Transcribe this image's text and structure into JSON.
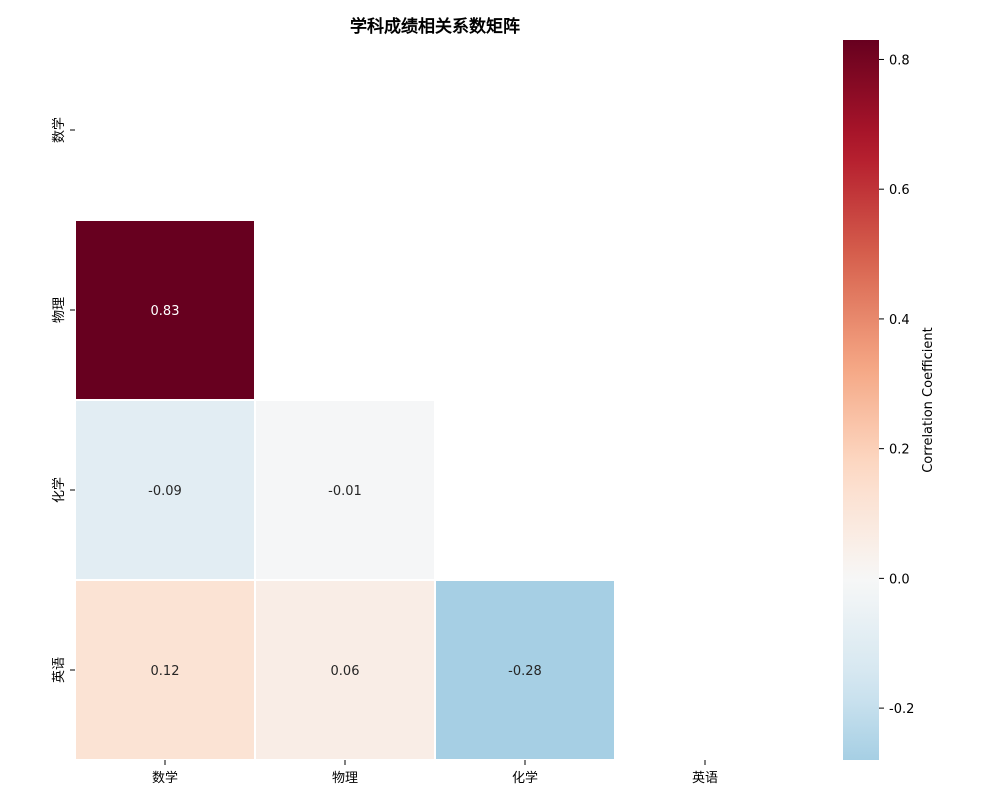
{
  "chart_data": {
    "type": "heatmap",
    "title": "学科成绩相关系数矩阵",
    "x_categories": [
      "数学",
      "物理",
      "化学",
      "英语"
    ],
    "y_categories": [
      "数学",
      "物理",
      "化学",
      "英语"
    ],
    "cells": [
      {
        "row": 1,
        "col": 0,
        "value": 0.83,
        "label": "0.83"
      },
      {
        "row": 2,
        "col": 0,
        "value": -0.09,
        "label": "-0.09"
      },
      {
        "row": 2,
        "col": 1,
        "value": -0.01,
        "label": "-0.01"
      },
      {
        "row": 3,
        "col": 0,
        "value": 0.12,
        "label": "0.12"
      },
      {
        "row": 3,
        "col": 1,
        "value": 0.06,
        "label": "0.06"
      },
      {
        "row": 3,
        "col": 2,
        "value": -0.28,
        "label": "-0.28"
      }
    ],
    "mask": "upper-triangle-and-diagonal",
    "colorbar": {
      "label": "Correlation Coefficient",
      "range": [
        -0.28,
        0.83
      ],
      "ticks": [
        -0.2,
        0.0,
        0.2,
        0.4,
        0.6,
        0.8
      ],
      "tick_labels": [
        "-0.2",
        "0.0",
        "0.2",
        "0.4",
        "0.6",
        "0.8"
      ],
      "colormap": "RdBu_r",
      "center": 0
    },
    "grid": false,
    "legend": "colorbar-right"
  }
}
